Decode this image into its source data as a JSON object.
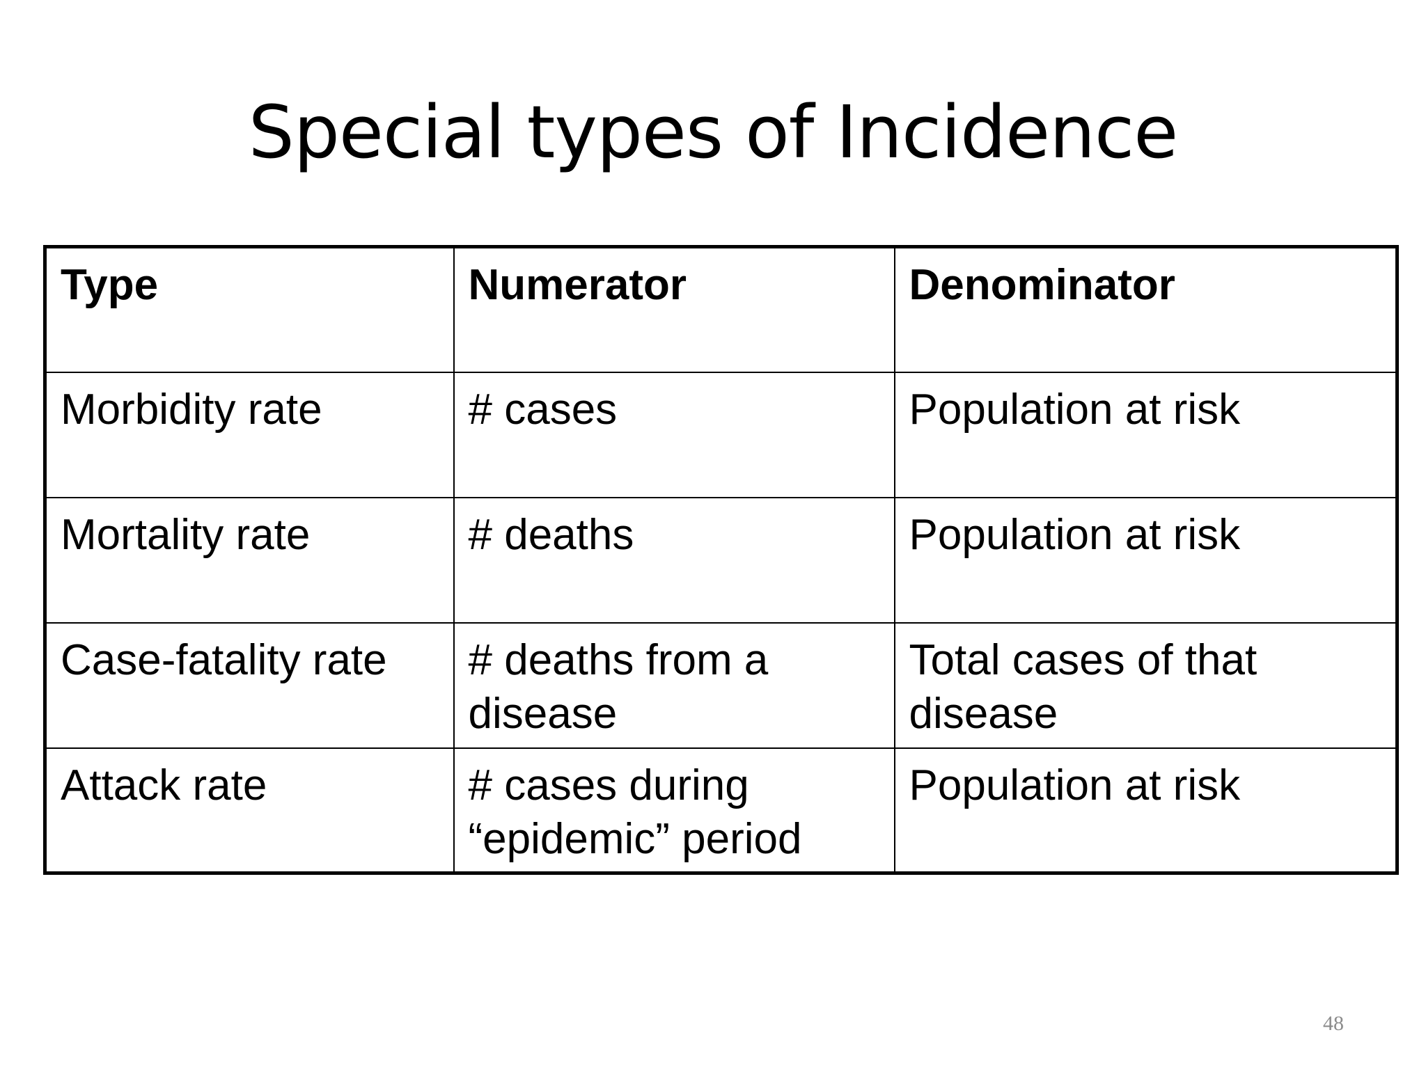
{
  "slide": {
    "title": "Special types of Incidence",
    "page_number": "48"
  },
  "table": {
    "headers": [
      "Type",
      "Numerator",
      "Denominator"
    ],
    "rows": [
      [
        "Morbidity rate",
        "# cases",
        "Population at risk"
      ],
      [
        "Mortality rate",
        "# deaths",
        "Population at risk"
      ],
      [
        "Case-fatality rate",
        "# deaths from a disease",
        "Total cases of that disease"
      ],
      [
        "Attack rate",
        "# cases during “epidemic” period",
        "Population at risk"
      ]
    ]
  }
}
